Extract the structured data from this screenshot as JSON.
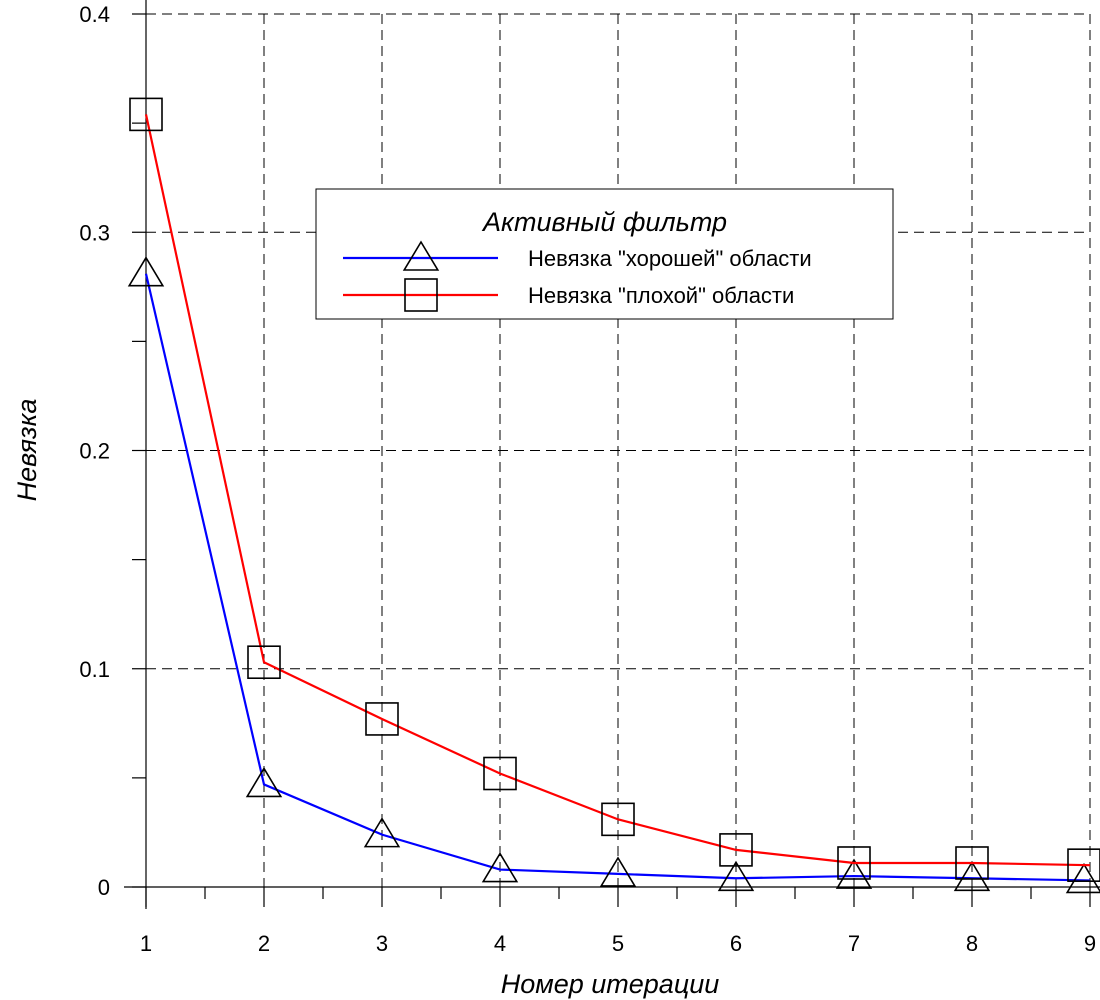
{
  "chart_data": {
    "type": "line",
    "title": "",
    "xlabel": "Номер итерации",
    "ylabel": "Невязка",
    "xlim": [
      1,
      9
    ],
    "ylim": [
      0,
      0.4
    ],
    "x": [
      1,
      2,
      3,
      4,
      5,
      6,
      7,
      8,
      9
    ],
    "x_ticks": [
      "1",
      "2",
      "3",
      "4",
      "5",
      "6",
      "7",
      "8",
      "9"
    ],
    "y_ticks": [
      {
        "value": 0,
        "label": "0"
      },
      {
        "value": 0.1,
        "label": "0.1"
      },
      {
        "value": 0.2,
        "label": "0.2"
      },
      {
        "value": 0.3,
        "label": "0.3"
      },
      {
        "value": 0.4,
        "label": "0.4"
      }
    ],
    "grid": true,
    "legend": {
      "title": "Активный фильтр",
      "placement": "top-center"
    },
    "series": [
      {
        "name": "Невязка \"хорошей\" области",
        "color": "#0000ff",
        "marker": "triangle",
        "values": [
          0.281,
          0.047,
          0.024,
          0.008,
          0.006,
          0.004,
          0.005,
          0.004,
          0.003
        ]
      },
      {
        "name": "Невязка \"плохой\" области",
        "color": "#ff0000",
        "marker": "square",
        "values": [
          0.354,
          0.103,
          0.077,
          0.052,
          0.031,
          0.017,
          0.011,
          0.011,
          0.01
        ]
      }
    ]
  }
}
